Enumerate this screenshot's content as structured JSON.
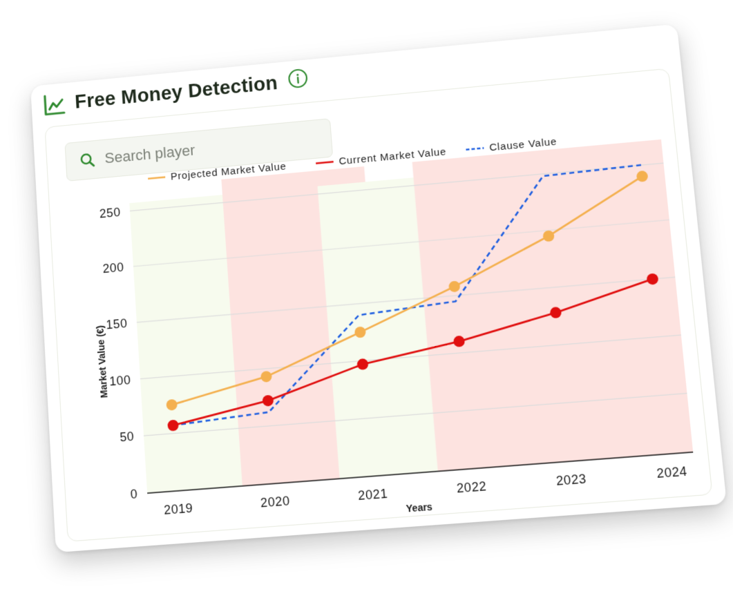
{
  "header": {
    "title": "Free Money Detection"
  },
  "search": {
    "placeholder": "Search player"
  },
  "colors": {
    "projected": "#f4b04f",
    "current": "#e00f0f",
    "clause": "#1f5fe0",
    "band_green": "#f7fbee",
    "band_red": "#fde3e0",
    "icon_green": "#2f8a2f"
  },
  "chart_data": {
    "type": "line",
    "x": [
      "2019",
      "2020",
      "2021",
      "2022",
      "2023",
      "2024"
    ],
    "xlabel": "Years",
    "ylabel": "Market Value (€)",
    "yticks": [
      "0",
      "50",
      "100",
      "150",
      "200",
      "250"
    ],
    "ylim": [
      0,
      260
    ],
    "series": [
      {
        "name": "Projected Market Value",
        "style": "solid",
        "values": [
          75,
          93,
          125,
          158,
          195,
          240
        ]
      },
      {
        "name": "Current Market Value",
        "style": "solid",
        "values": [
          57,
          72,
          97,
          110,
          128,
          150
        ]
      },
      {
        "name": "Clause Value",
        "style": "dashed",
        "values": [
          57,
          62,
          140,
          145,
          248,
          250
        ]
      }
    ],
    "background_bands": [
      {
        "from": "2019",
        "to": "2020",
        "color": "green"
      },
      {
        "from": "2020",
        "to": "2021",
        "color": "red"
      },
      {
        "from": "2021",
        "to": "2022",
        "color": "green"
      },
      {
        "from": "2022",
        "to": "2024",
        "color": "red"
      }
    ],
    "legend_position": "top"
  }
}
